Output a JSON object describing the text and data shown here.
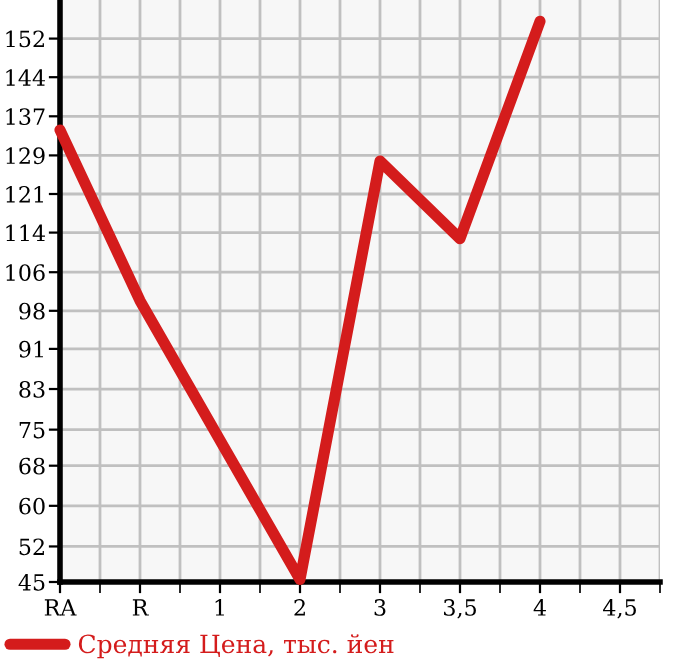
{
  "chart_data": {
    "type": "line",
    "categories": [
      "RA",
      "R",
      "1",
      "2",
      "3",
      "3,5",
      "4",
      "4,5"
    ],
    "series": [
      {
        "name": "Средняя Цена, тыс. йен",
        "color": "#d41c1c",
        "values": [
          134.0,
          100.4,
          72.9,
          45.5,
          127.9,
          112.6,
          155.4,
          null
        ]
      }
    ],
    "ylim": [
      45,
      159.6
    ],
    "yticks": [
      45,
      52,
      60,
      {
        "value": 67.9,
        "label": "68"
      },
      75,
      83,
      {
        "value": 90.9,
        "label": "91"
      },
      {
        "value": 98.4,
        "label": "98"
      },
      106,
      {
        "value": 113.8,
        "label": "114"
      },
      {
        "value": 121.4,
        "label": "121"
      },
      129,
      {
        "value": 136.7,
        "label": "137"
      },
      {
        "value": 144.4,
        "label": "144"
      },
      152
    ],
    "grid": true,
    "legend": "bottom",
    "marker": "none",
    "line_style": "solid"
  }
}
